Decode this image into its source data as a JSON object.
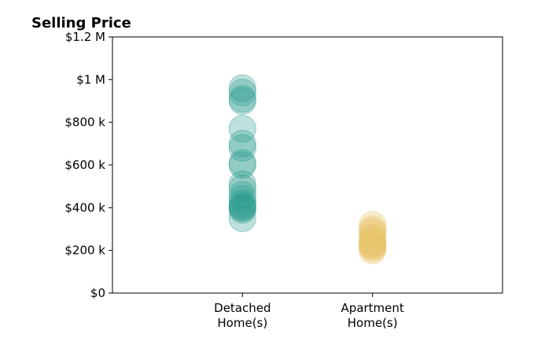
{
  "chart_data": {
    "type": "scatter",
    "title": "Selling Price",
    "xlabel": "",
    "ylabel": "",
    "ylim": [
      0,
      1200000
    ],
    "xlim": [
      0,
      3
    ],
    "yticks": [
      0,
      200000,
      400000,
      600000,
      800000,
      1000000,
      1200000
    ],
    "ytick_labels": [
      "$0",
      "$200 k",
      "$400 k",
      "$600 k",
      "$800 k",
      "$1 M",
      "$1.2 M"
    ],
    "categories": [
      {
        "label_lines": [
          "Detached",
          "Home(s)"
        ],
        "x": 1
      },
      {
        "label_lines": [
          "Apartment",
          "Home(s)"
        ],
        "x": 2
      }
    ],
    "grid": false,
    "legend": "none",
    "series": [
      {
        "category_index": 0,
        "color": "#2a9d8f",
        "values": [
          960000,
          940000,
          910000,
          900000,
          770000,
          700000,
          680000,
          610000,
          600000,
          510000,
          490000,
          460000,
          440000,
          420000,
          410000,
          400000,
          400000,
          390000,
          350000
        ]
      },
      {
        "category_index": 1,
        "color": "#e9c46a",
        "values": [
          320000,
          300000,
          290000,
          280000,
          260000,
          250000,
          240000,
          230000,
          230000,
          220000,
          220000,
          210000,
          200000
        ]
      }
    ]
  }
}
